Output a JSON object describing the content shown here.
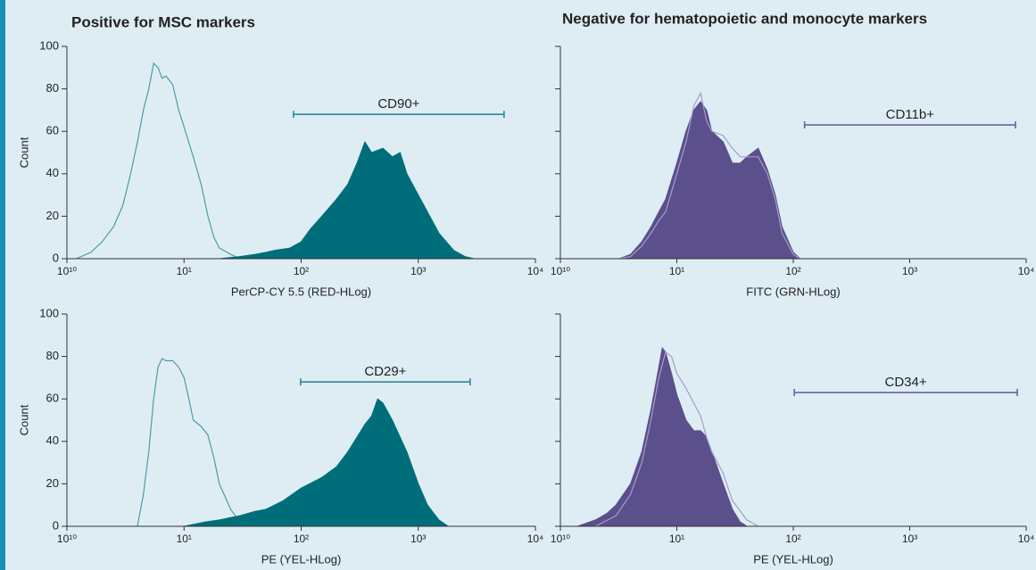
{
  "headings": [
    "Positive for MSC markers",
    "Negative for hematopoietic and monocyte markers"
  ],
  "chart_data": [
    {
      "type": "area",
      "x_label": "PerCP-CY 5.5 (RED-HLog)",
      "y_label": "Count",
      "log_x": true,
      "xlim": [
        1,
        10000
      ],
      "ylim": [
        0,
        100
      ],
      "xticks": [
        {
          "value": 1,
          "label": "10¹⁰"
        },
        {
          "value": 10,
          "label": "10¹"
        },
        {
          "value": 100,
          "label": "10²"
        },
        {
          "value": 1000,
          "label": "10³"
        },
        {
          "value": 10000,
          "label": "10⁴"
        }
      ],
      "yticks": [
        0,
        20,
        40,
        60,
        80,
        100
      ],
      "series": [
        {
          "style": "outline",
          "color": "#4c9ba6",
          "x": [
            1.2,
            1.6,
            2,
            2.5,
            3,
            3.5,
            4,
            4.5,
            5,
            5.5,
            6,
            6.5,
            7,
            8,
            9,
            10,
            12,
            14,
            16,
            18,
            20,
            25,
            30
          ],
          "values": [
            0,
            3,
            8,
            15,
            25,
            40,
            55,
            70,
            80,
            92,
            90,
            85,
            86,
            82,
            70,
            62,
            48,
            35,
            20,
            10,
            5,
            2,
            0
          ]
        },
        {
          "style": "filled",
          "color": "#006e7a",
          "x": [
            20,
            30,
            40,
            50,
            60,
            80,
            100,
            120,
            150,
            200,
            250,
            300,
            350,
            400,
            500,
            600,
            700,
            800,
            1000,
            1200,
            1500,
            2000,
            2500,
            3000
          ],
          "values": [
            0,
            1,
            2,
            3,
            4,
            5,
            8,
            14,
            20,
            28,
            35,
            45,
            55,
            50,
            52,
            48,
            50,
            40,
            30,
            22,
            12,
            4,
            1,
            0
          ]
        }
      ],
      "gate": {
        "label": "CD90+",
        "x": [
          86,
          5400
        ],
        "y": 68,
        "color": "#2f8a9a"
      }
    },
    {
      "type": "area",
      "x_label": "FITC (GRN-HLog)",
      "log_x": true,
      "xlim": [
        1,
        10000
      ],
      "ylim": [
        0,
        100
      ],
      "xticks": [
        {
          "value": 1,
          "label": "10¹⁰"
        },
        {
          "value": 10,
          "label": "10¹"
        },
        {
          "value": 100,
          "label": "10²"
        },
        {
          "value": 1000,
          "label": "10³"
        },
        {
          "value": 10000,
          "label": "10⁴"
        }
      ],
      "yticks": [
        0,
        20,
        40,
        60,
        80,
        100
      ],
      "series": [
        {
          "style": "filled",
          "color": "#5b4f8c",
          "x": [
            3.2,
            4,
            5,
            6,
            7,
            8,
            10,
            12,
            14,
            16,
            18,
            20,
            25,
            30,
            35,
            40,
            50,
            60,
            70,
            80,
            100,
            115
          ],
          "values": [
            0,
            2,
            8,
            15,
            22,
            28,
            45,
            60,
            70,
            74,
            70,
            60,
            55,
            45,
            45,
            48,
            52,
            42,
            30,
            15,
            3,
            0
          ]
        },
        {
          "style": "outline",
          "color": "#a49dc9",
          "x": [
            3.2,
            4,
            5,
            6,
            7,
            8,
            10,
            12,
            14,
            16,
            18,
            20,
            25,
            30,
            35,
            40,
            50,
            60,
            70,
            80,
            100,
            115
          ],
          "values": [
            0,
            1,
            6,
            12,
            18,
            22,
            40,
            55,
            72,
            78,
            65,
            60,
            58,
            52,
            48,
            48,
            48,
            40,
            28,
            12,
            2,
            0
          ]
        }
      ],
      "gate": {
        "label": "CD11b+",
        "x": [
          125,
          8090
        ],
        "y": 63,
        "color": "#6a60a0"
      }
    },
    {
      "type": "area",
      "x_label": "PE (YEL-HLog)",
      "y_label": "Count",
      "log_x": true,
      "xlim": [
        1,
        10000
      ],
      "ylim": [
        0,
        100
      ],
      "xticks": [
        {
          "value": 1,
          "label": "10¹⁰"
        },
        {
          "value": 10,
          "label": "10¹"
        },
        {
          "value": 100,
          "label": "10²"
        },
        {
          "value": 1000,
          "label": "10³"
        },
        {
          "value": 10000,
          "label": "10⁴"
        }
      ],
      "yticks": [
        0,
        20,
        40,
        60,
        80,
        100
      ],
      "series": [
        {
          "style": "outline",
          "color": "#4c9ba6",
          "x": [
            4,
            4.5,
            5,
            5.5,
            6,
            6.5,
            7,
            8,
            9,
            10,
            11,
            12,
            14,
            16,
            18,
            20,
            25,
            30,
            40
          ],
          "values": [
            0,
            15,
            35,
            60,
            75,
            79,
            78,
            78,
            75,
            70,
            60,
            50,
            47,
            43,
            32,
            20,
            8,
            2,
            0
          ]
        },
        {
          "style": "filled",
          "color": "#006e7a",
          "x": [
            10,
            15,
            20,
            30,
            40,
            50,
            70,
            100,
            150,
            200,
            250,
            300,
            350,
            400,
            450,
            500,
            600,
            800,
            1000,
            1200,
            1500,
            1800
          ],
          "values": [
            0,
            2,
            3,
            5,
            7,
            8,
            12,
            18,
            23,
            28,
            35,
            42,
            48,
            52,
            60,
            58,
            50,
            35,
            20,
            10,
            3,
            0
          ]
        }
      ],
      "gate": {
        "label": "CD29+",
        "x": [
          99,
          2770
        ],
        "y": 68,
        "color": "#2f8a9a"
      }
    },
    {
      "type": "area",
      "x_label": "PE (YEL-HLog)",
      "log_x": true,
      "xlim": [
        1,
        10000
      ],
      "ylim": [
        0,
        100
      ],
      "xticks": [
        {
          "value": 1,
          "label": "10¹⁰"
        },
        {
          "value": 10,
          "label": "10¹"
        },
        {
          "value": 100,
          "label": "10²"
        },
        {
          "value": 1000,
          "label": "10³"
        },
        {
          "value": 10000,
          "label": "10⁴"
        }
      ],
      "yticks": [
        0,
        20,
        40,
        60,
        80,
        100
      ],
      "series": [
        {
          "style": "filled",
          "color": "#5b4f8c",
          "x": [
            1.4,
            2,
            2.5,
            3,
            4,
            5,
            6,
            7,
            7.5,
            8,
            9,
            10,
            12,
            14,
            16,
            18,
            20,
            25,
            30,
            35,
            40
          ],
          "values": [
            0,
            3,
            6,
            10,
            20,
            35,
            55,
            75,
            84,
            82,
            72,
            62,
            50,
            45,
            45,
            42,
            35,
            20,
            8,
            2,
            0
          ]
        },
        {
          "style": "outline",
          "color": "#a49dc9",
          "x": [
            2,
            3,
            4,
            5,
            6,
            7,
            8,
            9,
            10,
            12,
            14,
            16,
            18,
            20,
            25,
            30,
            40,
            50
          ],
          "values": [
            0,
            5,
            15,
            30,
            50,
            70,
            82,
            80,
            72,
            65,
            58,
            52,
            42,
            35,
            25,
            12,
            3,
            0
          ]
        }
      ],
      "gate": {
        "label": "CD34+",
        "x": [
          102,
          8380
        ],
        "y": 63,
        "color": "#6a60a0"
      }
    }
  ]
}
